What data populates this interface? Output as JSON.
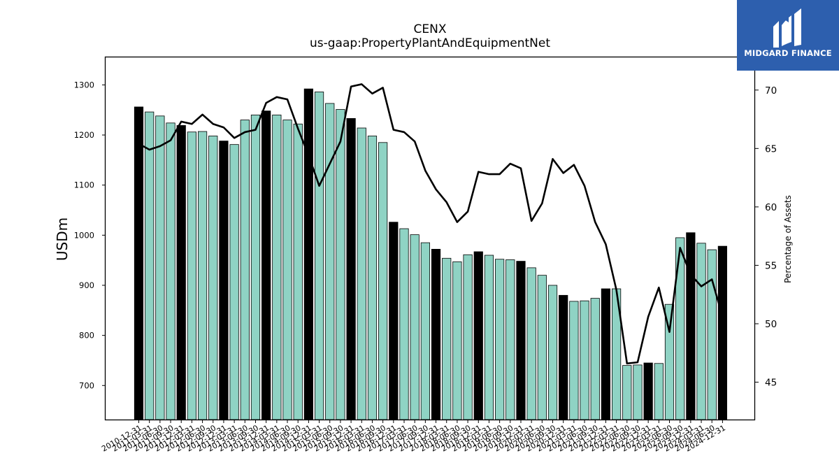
{
  "title": "CENX",
  "subtitle": "us-gaap:PropertyPlantAndEquipmentNet",
  "brand": {
    "name": "MIDGARD FINANCE",
    "color": "#2d5fae"
  },
  "colors": {
    "bar_annual": "#000000",
    "bar_quarter": "#8fd3c4",
    "line": "#000000"
  },
  "chart_data": {
    "type": "bar",
    "ylabel": "USDm",
    "y2label": "Percentage of Assets",
    "ylim": [
      632,
      1355
    ],
    "y2lim": [
      41.8,
      72.8
    ],
    "yticks": [
      "700",
      "800",
      "900",
      "1000",
      "1100",
      "1200",
      "1300"
    ],
    "y2ticks": [
      "45",
      "50",
      "55",
      "60",
      "65",
      "70"
    ],
    "legend": "none",
    "grid": false,
    "categories": [
      "2010-12-31",
      "2011-03-31",
      "2011-06-30",
      "2011-09-30",
      "2011-12-31",
      "2012-03-31",
      "2012-06-30",
      "2012-09-30",
      "2012-12-31",
      "2013-03-31",
      "2013-06-30",
      "2013-09-30",
      "2013-12-31",
      "2014-03-31",
      "2014-06-30",
      "2014-09-30",
      "2014-12-31",
      "2015-03-31",
      "2015-06-30",
      "2015-09-30",
      "2015-12-31",
      "2016-03-31",
      "2016-06-30",
      "2016-09-30",
      "2016-12-31",
      "2017-03-31",
      "2017-06-30",
      "2017-09-30",
      "2017-12-31",
      "2018-03-31",
      "2018-06-30",
      "2018-09-30",
      "2018-12-31",
      "2019-03-31",
      "2019-06-30",
      "2019-09-30",
      "2019-12-31",
      "2020-03-31",
      "2020-06-30",
      "2020-09-30",
      "2020-12-31",
      "2021-03-31",
      "2021-06-30",
      "2021-09-30",
      "2021-12-31",
      "2022-03-31",
      "2022-06-30",
      "2022-09-30",
      "2022-12-31",
      "2023-03-31",
      "2023-06-30",
      "2023-09-30",
      "2023-12-31",
      "2024-03-31",
      "2024-06-30",
      "2024-12-31"
    ],
    "series": [
      {
        "kind": "bar",
        "axis": "left",
        "values": [
          1256,
          1246,
          1238,
          1224,
          1219,
          1206,
          1207,
          1198,
          1188,
          1181,
          1230,
          1240,
          1248,
          1240,
          1230,
          1222,
          1292,
          1286,
          1263,
          1251,
          1233,
          1214,
          1198,
          1185,
          1026,
          1013,
          1001,
          985,
          972,
          954,
          947,
          961,
          967,
          960,
          952,
          951,
          948,
          935,
          920,
          900,
          880,
          868,
          869,
          874,
          893,
          893,
          740,
          741,
          745,
          744,
          862,
          995,
          1005,
          984,
          971,
          978
        ],
        "annual": [
          true,
          false,
          false,
          false,
          true,
          false,
          false,
          false,
          true,
          false,
          false,
          false,
          true,
          false,
          false,
          false,
          true,
          false,
          false,
          false,
          true,
          false,
          false,
          false,
          true,
          false,
          false,
          false,
          true,
          false,
          false,
          false,
          true,
          false,
          false,
          false,
          true,
          false,
          false,
          false,
          true,
          false,
          false,
          false,
          true,
          false,
          false,
          false,
          true,
          false,
          false,
          false,
          true,
          false,
          false,
          true
        ]
      },
      {
        "kind": "line",
        "axis": "right",
        "values": [
          65.4,
          64.9,
          65.2,
          65.7,
          67.3,
          67.1,
          67.9,
          67.1,
          66.8,
          65.9,
          66.4,
          66.6,
          68.9,
          69.4,
          69.2,
          66.7,
          64.4,
          61.8,
          63.7,
          65.6,
          70.3,
          70.5,
          69.7,
          70.2,
          66.6,
          66.4,
          65.6,
          63.1,
          61.5,
          60.4,
          58.7,
          59.6,
          63.0,
          62.8,
          62.8,
          63.7,
          63.3,
          58.8,
          60.3,
          64.1,
          62.9,
          63.6,
          61.8,
          58.7,
          56.8,
          52.9,
          46.6,
          46.7,
          50.6,
          53.1,
          49.3,
          56.5,
          54.2,
          53.2,
          53.8,
          50.6
        ]
      }
    ]
  }
}
